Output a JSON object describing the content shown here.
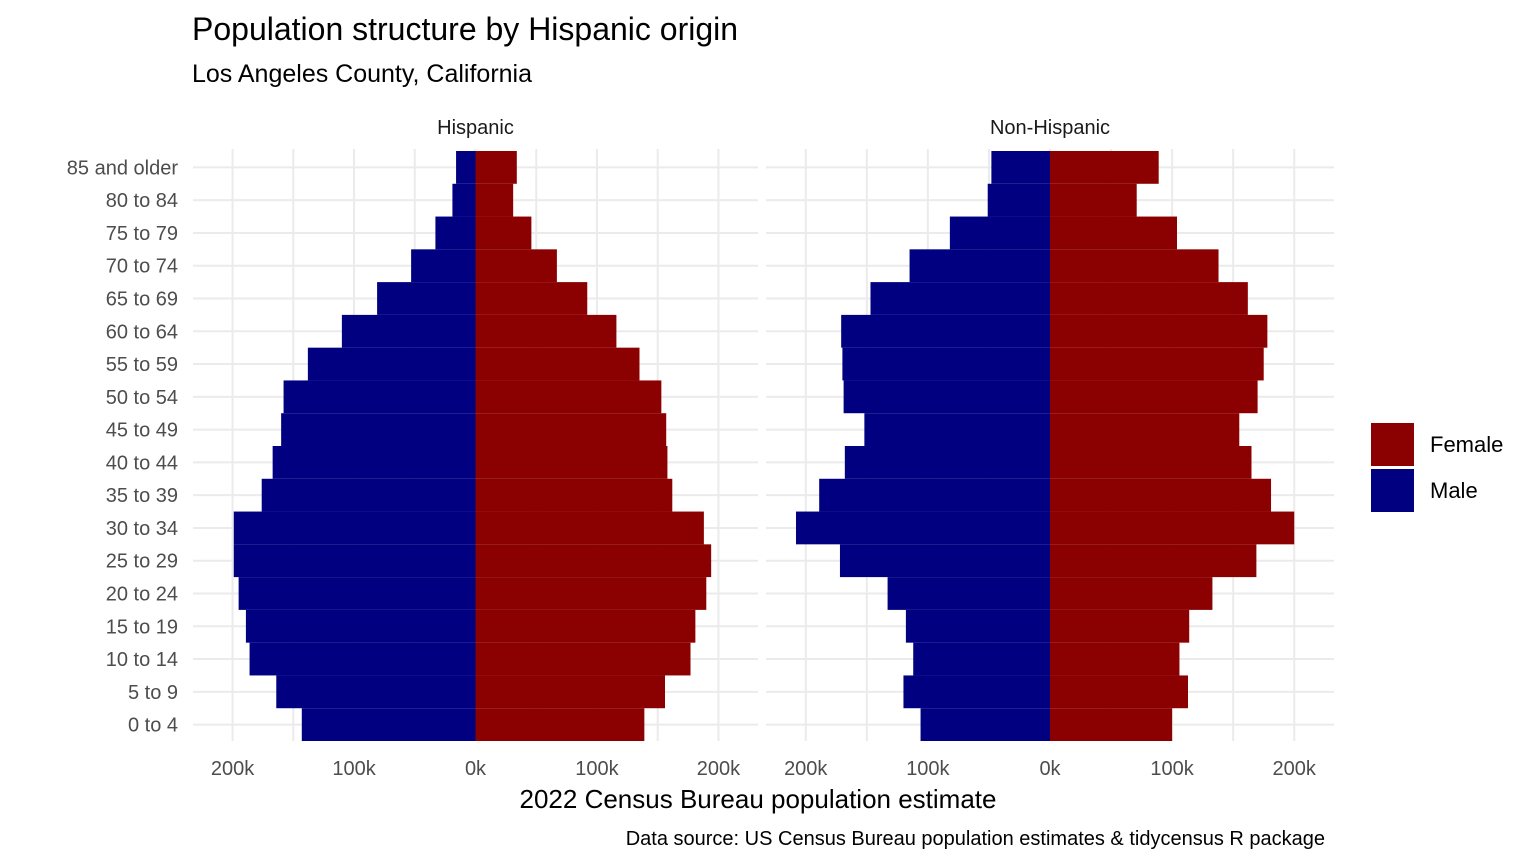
{
  "colors": {
    "female": "#8b0000",
    "male": "#000080",
    "grid": "#ebebeb"
  },
  "chart_data": {
    "type": "bar",
    "orientation": "horizontal",
    "title": "Population structure by Hispanic origin",
    "subtitle": "Los Angeles County, California",
    "xlabel": "2022 Census Bureau population estimate",
    "caption": "Data source: US Census Bureau population estimates & tidycensus R package",
    "xlim": [
      -200000,
      200000
    ],
    "xticks": [
      -200000,
      -100000,
      0,
      100000,
      200000
    ],
    "xtick_labels": [
      "200k",
      "100k",
      "0k",
      "100k",
      "200k"
    ],
    "grid": true,
    "legend_position": "right",
    "legend": [
      {
        "label": "Female",
        "color": "#8b0000"
      },
      {
        "label": "Male",
        "color": "#000080"
      }
    ],
    "categories": [
      "0 to 4",
      "5 to 9",
      "10 to 14",
      "15 to 19",
      "20 to 24",
      "25 to 29",
      "30 to 34",
      "35 to 39",
      "40 to 44",
      "45 to 49",
      "50 to 54",
      "55 to 59",
      "60 to 64",
      "65 to 69",
      "70 to 74",
      "75 to 79",
      "80 to 84",
      "85 and older"
    ],
    "panels": [
      {
        "name": "Hispanic",
        "series": [
          {
            "name": "Female",
            "values": [
              139000,
              156000,
              177000,
              181000,
              190000,
              194000,
              188000,
              162000,
              158000,
              157000,
              153000,
              135000,
              116000,
              92000,
              67000,
              46000,
              31000,
              34000
            ]
          },
          {
            "name": "Male",
            "values": [
              -143000,
              -164000,
              -186000,
              -189000,
              -195000,
              -199000,
              -199000,
              -176000,
              -167000,
              -160000,
              -158000,
              -138000,
              -110000,
              -81000,
              -53000,
              -33000,
              -19000,
              -16000
            ]
          }
        ]
      },
      {
        "name": "Non-Hispanic",
        "series": [
          {
            "name": "Female",
            "values": [
              100000,
              113000,
              106000,
              114000,
              133000,
              169000,
              200000,
              181000,
              165000,
              155000,
              170000,
              175000,
              178000,
              162000,
              138000,
              104000,
              71000,
              89000
            ]
          },
          {
            "name": "Male",
            "values": [
              -106000,
              -120000,
              -112000,
              -118000,
              -133000,
              -172000,
              -208000,
              -189000,
              -168000,
              -152000,
              -169000,
              -170000,
              -171000,
              -147000,
              -115000,
              -82000,
              -51000,
              -48000
            ]
          }
        ]
      }
    ]
  }
}
